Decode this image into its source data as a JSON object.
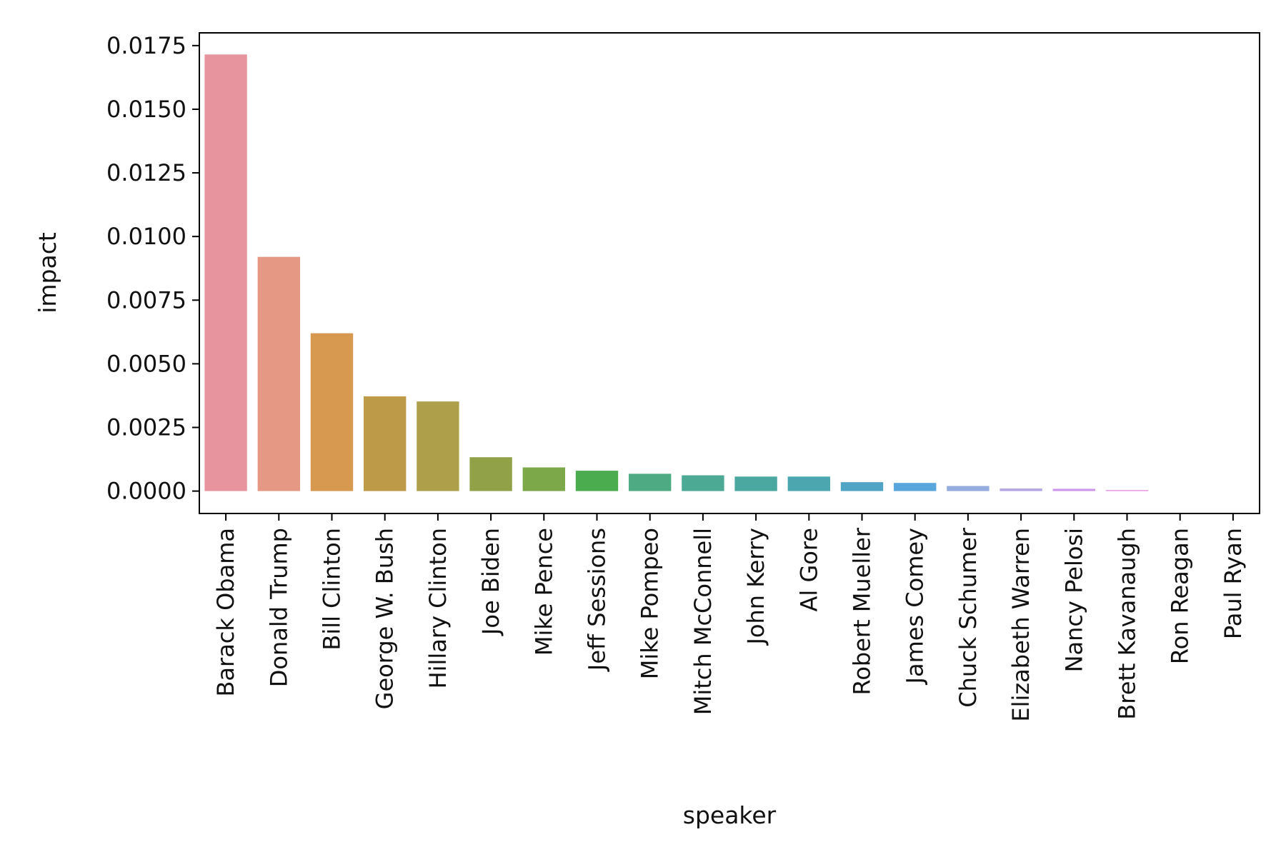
{
  "chart_data": {
    "type": "bar",
    "title": "",
    "xlabel": "speaker",
    "ylabel": "impact",
    "ylim": [
      -0.00088,
      0.018
    ],
    "yticks": [
      0.0,
      0.0025,
      0.005,
      0.0075,
      0.01,
      0.0125,
      0.015,
      0.0175
    ],
    "ytick_labels": [
      "0.0000",
      "0.0025",
      "0.0050",
      "0.0075",
      "0.0100",
      "0.0125",
      "0.0150",
      "0.0175"
    ],
    "grid": false,
    "legend": "none",
    "categories": [
      "Barack Obama",
      "Donald Trump",
      "Bill Clinton",
      "George W. Bush",
      "Hillary Clinton",
      "Joe Biden",
      "Mike Pence",
      "Jeff Sessions",
      "Mike Pompeo",
      "Mitch McConnell",
      "John Kerry",
      "Al Gore",
      "Robert Mueller",
      "James Comey",
      "Chuck Schumer",
      "Elizabeth Warren",
      "Nancy Pelosi",
      "Brett Kavanaugh",
      "Ron Reagan",
      "Paul Ryan"
    ],
    "values": [
      0.01715,
      0.0092,
      0.0062,
      0.00372,
      0.00352,
      0.00133,
      0.00093,
      0.0008,
      0.00068,
      0.00062,
      0.00057,
      0.00057,
      0.00035,
      0.00032,
      0.0002,
      0.0001,
      9e-05,
      4e-05,
      0.0,
      0.0
    ],
    "colors": [
      "#e8949f",
      "#e59883",
      "#d6994f",
      "#bd9a47",
      "#aea04a",
      "#91a148",
      "#7ca84a",
      "#4bac4f",
      "#4daa82",
      "#4ba994",
      "#4aa8a1",
      "#4ca6b0",
      "#4fa5c3",
      "#58a6dc",
      "#93acdd",
      "#b4a5e5",
      "#cd97ea",
      "#e58ee0",
      "#e992c7",
      "#eb93b3"
    ]
  }
}
